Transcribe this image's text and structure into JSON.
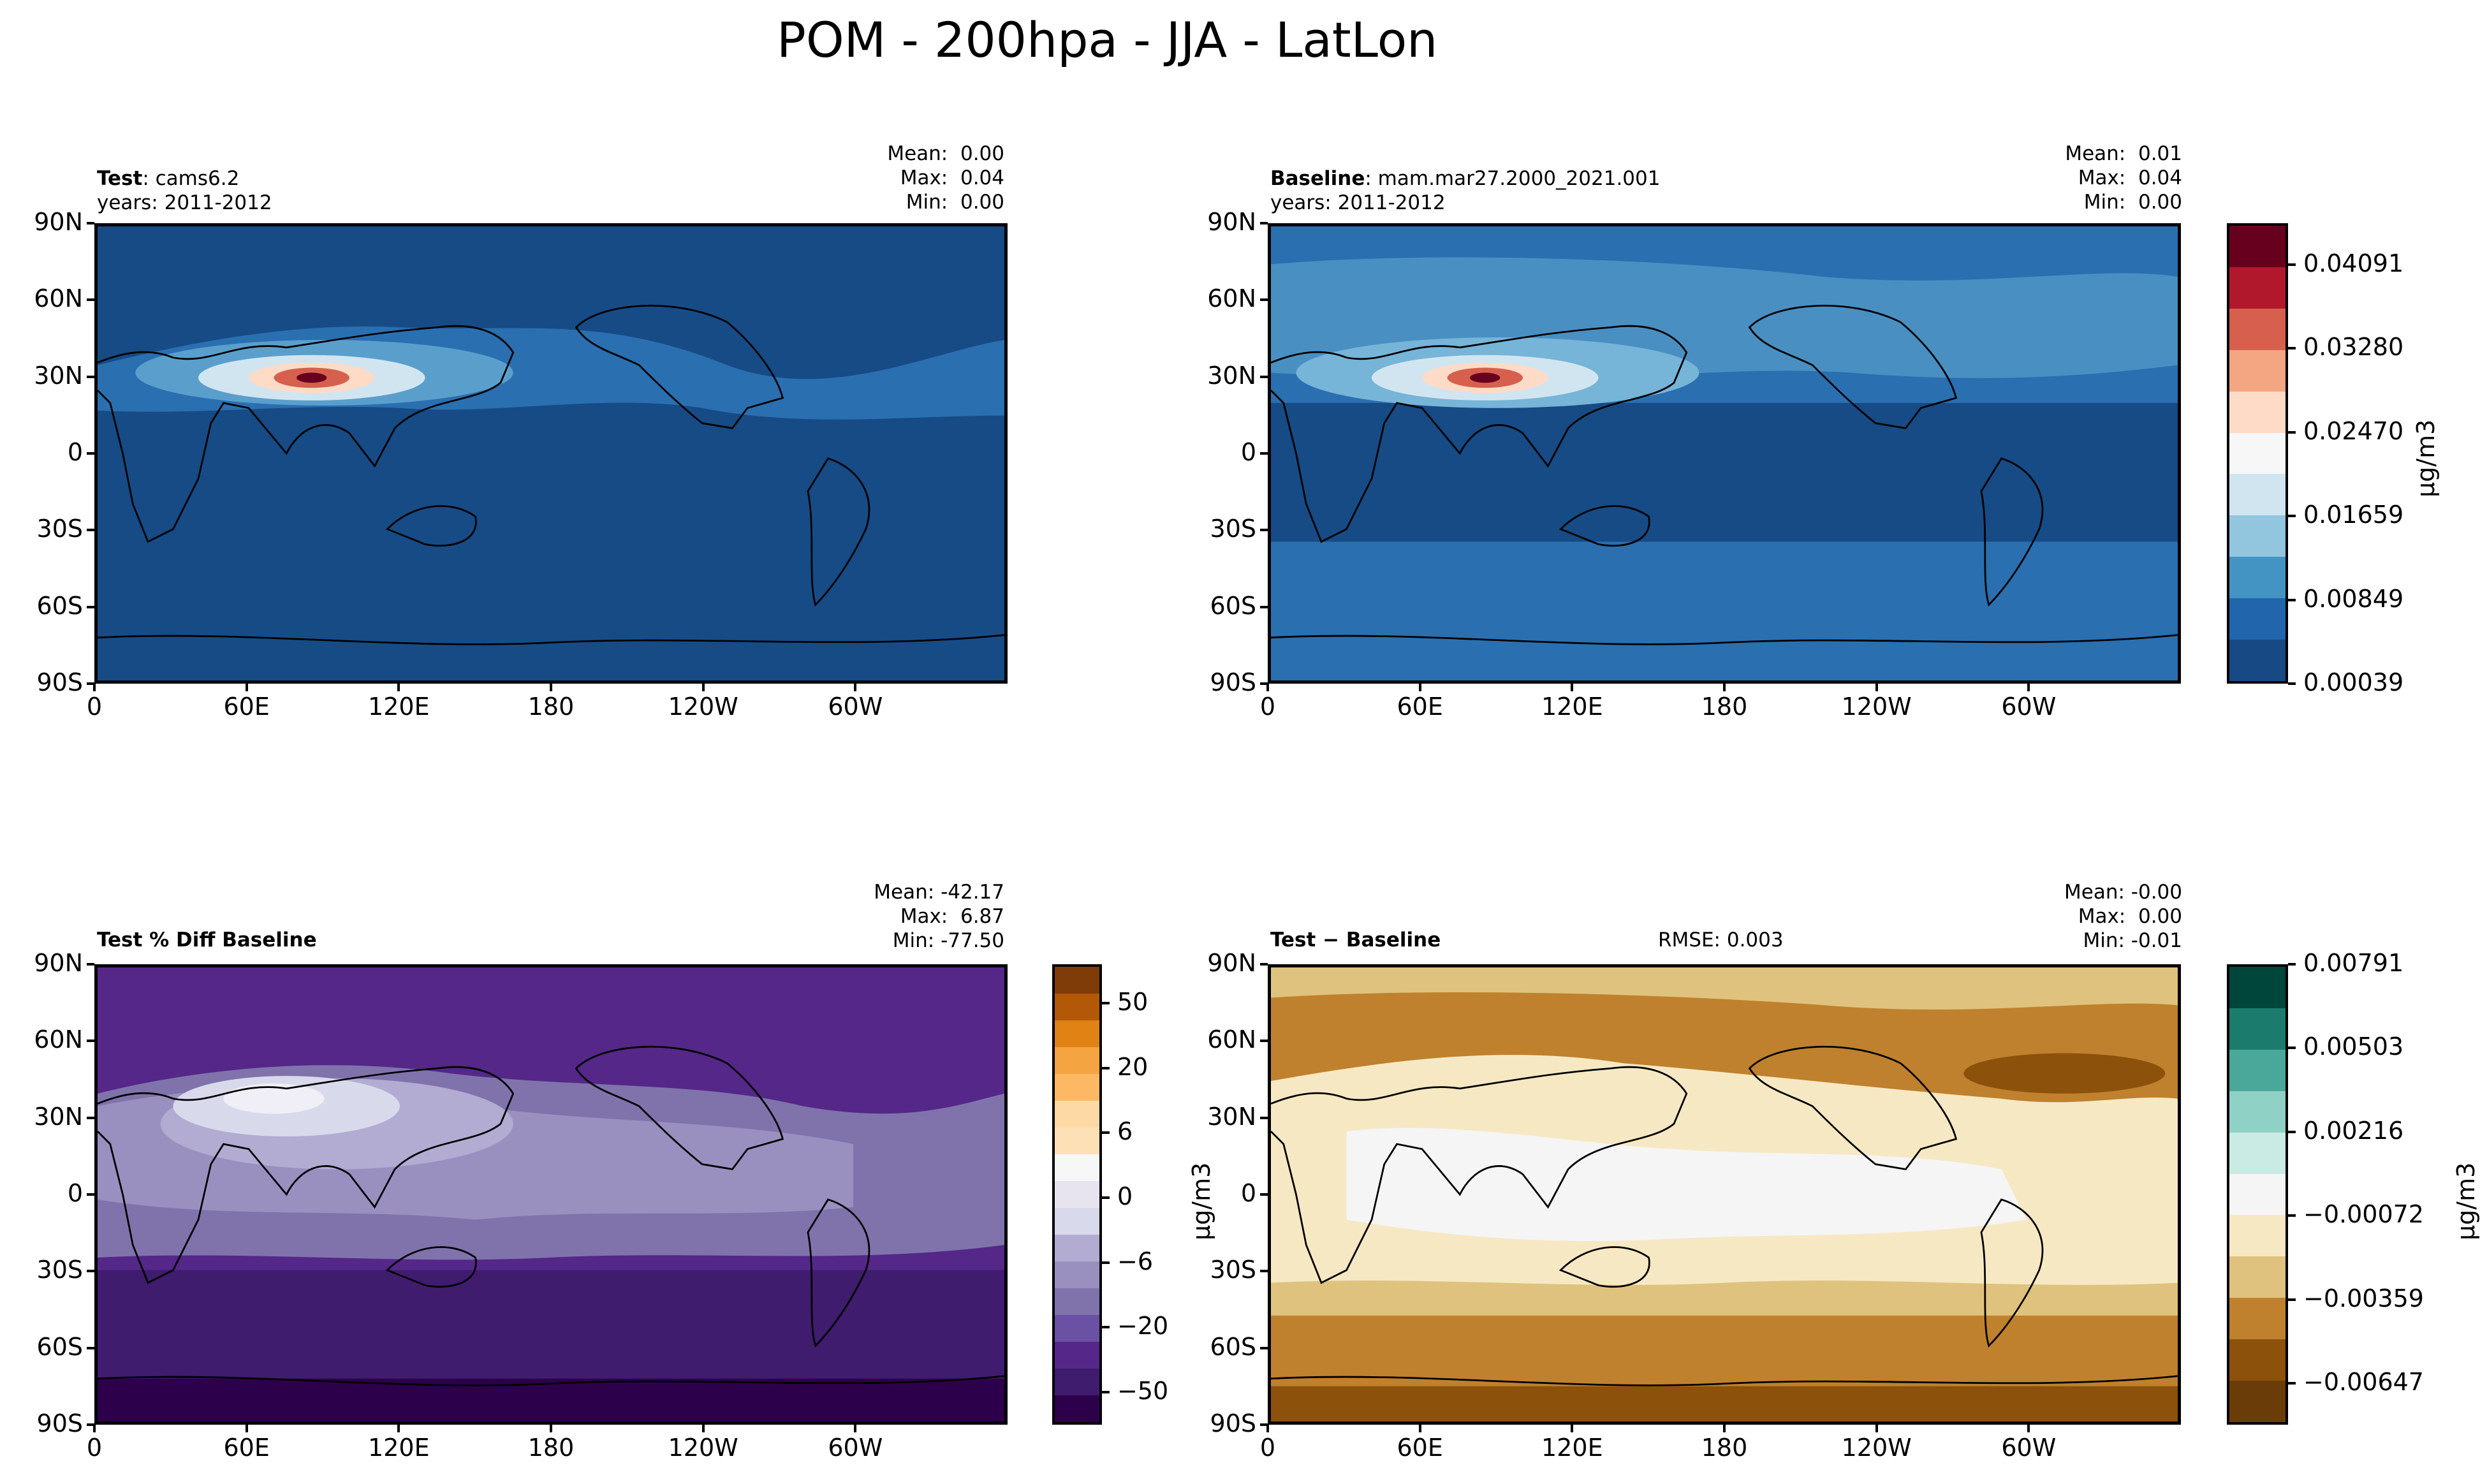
{
  "title": "POM - 200hpa - JJA - LatLon",
  "lat_ticks": [
    "90N",
    "60N",
    "30N",
    "0",
    "30S",
    "60S",
    "90S"
  ],
  "lon_ticks": [
    "0",
    "60E",
    "120E",
    "180",
    "120W",
    "60W"
  ],
  "chart_data": [
    {
      "type": "heatmap",
      "panel": "test",
      "title_bold": "Test",
      "title_rest": ": cams6.2",
      "years": "years: 2011-2012",
      "stats": {
        "mean": "0.00",
        "max": "0.04",
        "min": "0.00"
      },
      "colors": [
        "#164b85",
        "#2a6fb0",
        "#5a9fcc"
      ],
      "hotspot": {
        "lon": 85,
        "lat": 30
      }
    },
    {
      "type": "heatmap",
      "panel": "baseline",
      "title_bold": "Baseline",
      "title_rest": ": mam.mar27.2000_2021.001",
      "years": "years: 2011-2012",
      "stats": {
        "mean": "0.01",
        "max": "0.04",
        "min": "0.00"
      },
      "colorbar": {
        "ticks": [
          "0.04091",
          "0.03280",
          "0.02470",
          "0.01659",
          "0.00849",
          "0.00039"
        ],
        "label": "μg/m3",
        "colors": [
          "#67001f",
          "#b2182b",
          "#d6604d",
          "#f4a582",
          "#fddbc7",
          "#f7f7f7",
          "#d1e5f0",
          "#92c5de",
          "#4393c3",
          "#2166ac",
          "#174a85"
        ]
      }
    },
    {
      "type": "heatmap",
      "panel": "pct_diff",
      "title_bold": "Test % Diff Baseline",
      "stats": {
        "mean": "-42.17",
        "max": "6.87",
        "min": "-77.50"
      },
      "colorbar": {
        "ticks": [
          "50",
          "20",
          "6",
          "0",
          "−6",
          "−20",
          "−50"
        ],
        "label": "μg/m3",
        "colors": [
          "#7f3b08",
          "#b35806",
          "#e08214",
          "#f4a441",
          "#fdb863",
          "#fdd9a5",
          "#fee0b6",
          "#f7f7f7",
          "#e8e4ef",
          "#d8daeb",
          "#b2abd2",
          "#9a90c0",
          "#8073ac",
          "#6a51a3",
          "#542788",
          "#3f1c6e",
          "#2d004b"
        ]
      }
    },
    {
      "type": "heatmap",
      "panel": "diff",
      "title_bold": "Test",
      "title_rest": " − Baseline",
      "rmse": "RMSE: 0.003",
      "stats": {
        "mean": "-0.00",
        "max": "0.00",
        "min": "-0.01"
      },
      "colorbar": {
        "ticks": [
          "0.00791",
          "0.00503",
          "0.00216",
          "−0.00072",
          "−0.00359",
          "−0.00647"
        ],
        "label": "μg/m3",
        "colors": [
          "#01463b",
          "#1b7c6e",
          "#4aa89a",
          "#8fd1c4",
          "#c9ebe4",
          "#f5f5f5",
          "#f6e8c3",
          "#dfc27d",
          "#bf812d",
          "#8c510a",
          "#6a3d08"
        ]
      }
    }
  ]
}
